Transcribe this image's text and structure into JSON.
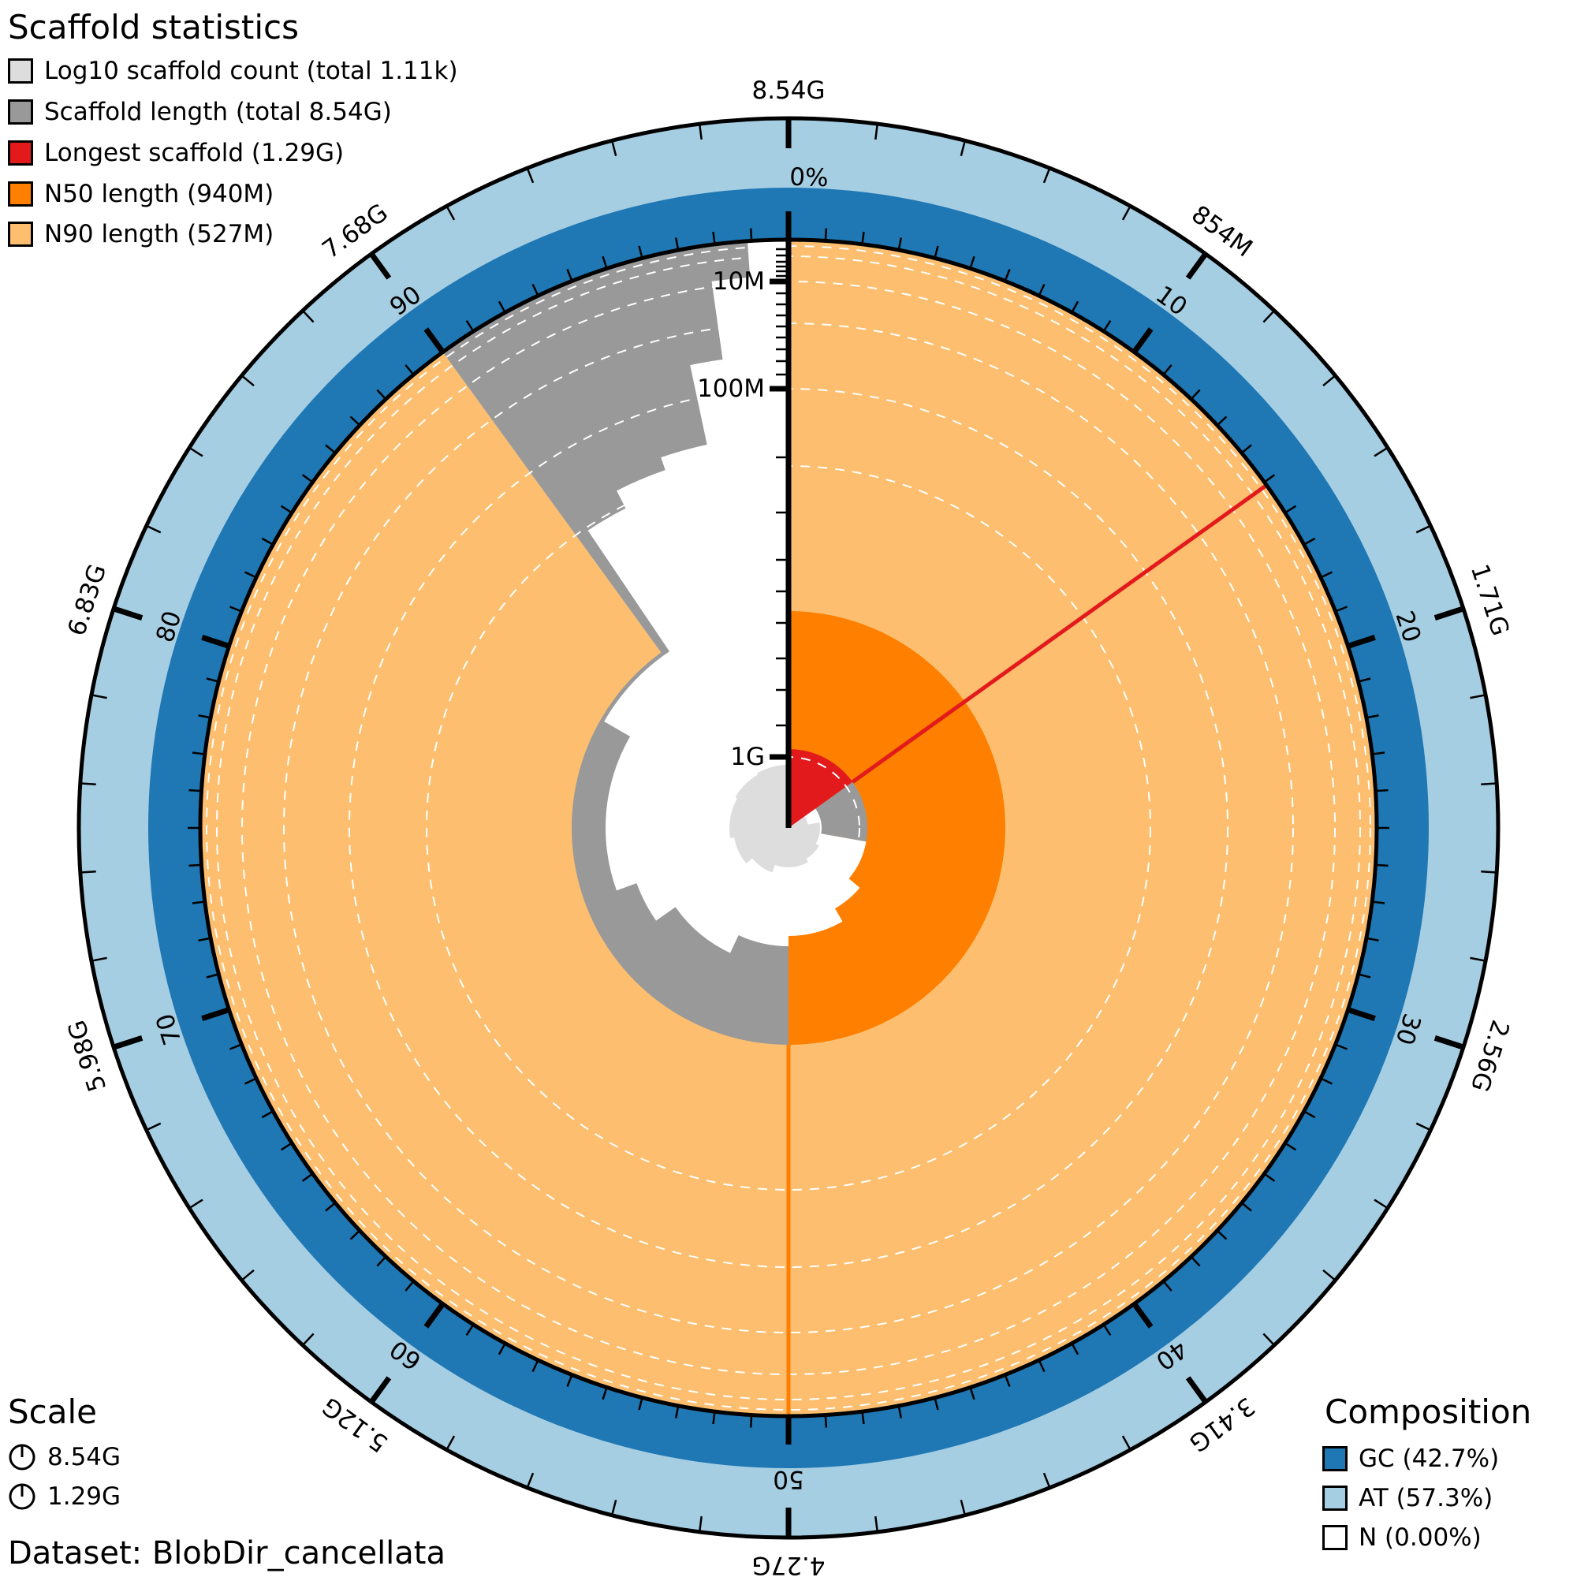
{
  "legend_stats": {
    "title": "Scaffold statistics",
    "items": [
      {
        "label": "Log10 scaffold count (total 1.11k)",
        "color": "#dddddd"
      },
      {
        "label": "Scaffold length (total 8.54G)",
        "color": "#999999"
      },
      {
        "label": "Longest scaffold (1.29G)",
        "color": "#e31a1c"
      },
      {
        "label": "N50 length (940M)",
        "color": "#ff7f00"
      },
      {
        "label": "N90 length (527M)",
        "color": "#fdbf6f"
      }
    ]
  },
  "scale": {
    "title": "Scale",
    "items": [
      {
        "label": "8.54G"
      },
      {
        "label": "1.29G"
      }
    ]
  },
  "dataset": "Dataset: BlobDir_cancellata",
  "composition": {
    "title": "Composition",
    "items": [
      {
        "label": "GC (42.7%)",
        "color": "#1f78b4"
      },
      {
        "label": "AT (57.3%)",
        "color": "#a6cee3"
      },
      {
        "label": "N (0.00%)",
        "color": "#ffffff"
      }
    ]
  },
  "chart_data": {
    "type": "pie",
    "total_length": "8.54G",
    "scaffold_count": "1.11k",
    "longest_scaffold": {
      "value": "1.29G",
      "fraction_of_total": 0.151
    },
    "n50": {
      "value": "940M",
      "percent": 50
    },
    "n90": {
      "value": "527M",
      "percent": 90
    },
    "gc_percent": 42.7,
    "at_percent": 57.3,
    "n_percent": 0.0,
    "outer_tick_labels": [
      "8.54G",
      "854M",
      "1.71G",
      "2.56G",
      "3.41G",
      "4.27G",
      "5.12G",
      "5.98G",
      "6.83G",
      "7.68G"
    ],
    "percent_tick_labels": [
      "0%",
      "10",
      "20",
      "30",
      "40",
      "50",
      "60",
      "70",
      "80",
      "90"
    ],
    "radial_tick_labels": [
      "1G",
      "100M",
      "10M"
    ],
    "colors": {
      "n90": "#fdbf6f",
      "n50": "#ff7f00",
      "longest": "#e31a1c",
      "length": "#999999",
      "count": "#dddddd",
      "gc": "#1f78b4",
      "at": "#a6cee3"
    }
  }
}
